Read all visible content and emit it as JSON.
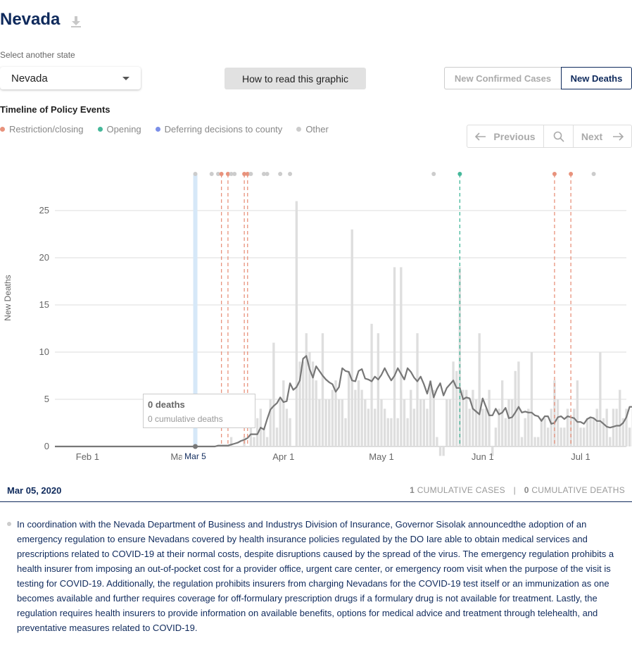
{
  "page": {
    "state_title": "Nevada",
    "select_label": "Select another state",
    "selected_state": "Nevada",
    "how_to_label": "How to read this graphic",
    "toggle": {
      "cases_label": "New Confirmed Cases",
      "deaths_label": "New Deaths",
      "active": "deaths"
    },
    "timeline_title": "Timeline of Policy Events",
    "legend": [
      {
        "label": "Restriction/closing",
        "color": "#e8927c"
      },
      {
        "label": "Opening",
        "color": "#45b89a"
      },
      {
        "label": "Deferring decisions to county",
        "color": "#7b8fe8"
      },
      {
        "label": "Other",
        "color": "#cccccc"
      }
    ],
    "nav": {
      "prev_label": "Previous",
      "next_label": "Next"
    },
    "tooltip": {
      "main": "0 deaths",
      "sub": "0 cumulative deaths"
    },
    "current_date": "Mar 05, 2020",
    "cumulative": {
      "cases_num": "1",
      "cases_label": "CUMULATIVE CASES",
      "separator": "|",
      "deaths_num": "0",
      "deaths_label": "CUMULATIVE DEATHS"
    },
    "description": "In coordination with the Nevada Department of Business and Industrys Division of Insurance, Governor Sisolak announcedthe adoption of an emergency regulation to ensure Nevadans covered by health insurance policies regulated by the DO Iare able to obtain medical services and prescriptions related to COVID-19 at their normal costs, despite disruptions caused by the spread of the virus. The emergency regulation prohibits a health insurer from imposing an out-of-pocket cost for a provider office, urgent care center, or emergency room visit when the purpose of the visit is testing for COVID-19. Additionally, the regulation prohibits insurers from charging Nevadans for the COVID-19 test itself or an immunization as one becomes available and further requires coverage for off-formulary prescription drugs if a formulary drug is not available for treatment. Lastly, the regulation requires health insurers to provide information on available benefits, options for medical advice and treatment through telehealth, and preventative measures related to COVID-19."
  },
  "chart_data": {
    "type": "bar",
    "ylabel": "New Deaths",
    "ylim": [
      0,
      28
    ],
    "yticks": [
      0,
      5,
      10,
      15,
      20,
      25
    ],
    "x_start": "2020-01-22",
    "x_end": "2020-07-15",
    "xtick_labels": [
      {
        "date": "2020-02-01",
        "label": "Feb 1"
      },
      {
        "date": "2020-03-01",
        "label": "Mar 1"
      },
      {
        "date": "2020-04-01",
        "label": "Apr 1"
      },
      {
        "date": "2020-05-01",
        "label": "May 1"
      },
      {
        "date": "2020-06-01",
        "label": "Jun 1"
      },
      {
        "date": "2020-07-01",
        "label": "Jul 1"
      }
    ],
    "selected_date": "2020-03-05",
    "selected_label": "Mar 5",
    "series": [
      {
        "name": "New Deaths",
        "start_date": "2020-03-15",
        "values": [
          0,
          1,
          0,
          0,
          0,
          1,
          0,
          2,
          1,
          3,
          4,
          2,
          1,
          5,
          11,
          2,
          5,
          7,
          4,
          3,
          0,
          26,
          9,
          9,
          12,
          10,
          9,
          7,
          5,
          12,
          5,
          5,
          6,
          7,
          5,
          5,
          3,
          8,
          23,
          6,
          7,
          6,
          5,
          4,
          13,
          4,
          12,
          5,
          4,
          3,
          3,
          19,
          3,
          19,
          5,
          3,
          6,
          4,
          12,
          5,
          5,
          4,
          7,
          6,
          1,
          -1,
          -1,
          5,
          5,
          9,
          8,
          19,
          6,
          6,
          4,
          6,
          5,
          12,
          4,
          4,
          6,
          -1,
          2,
          4,
          7,
          3,
          5,
          5,
          8,
          9,
          1,
          3,
          4,
          10,
          1,
          1,
          3,
          3,
          2,
          4,
          7,
          5,
          2,
          2,
          4,
          3,
          4,
          7,
          2,
          2,
          3,
          3,
          3,
          4,
          10,
          3,
          4,
          1,
          4,
          4,
          6,
          3,
          4,
          2,
          4,
          8,
          1,
          4,
          5,
          4,
          3,
          14,
          3,
          3,
          2,
          5,
          3,
          6,
          6,
          11,
          5,
          5,
          18
        ]
      },
      {
        "name": "7-day average",
        "start_date": "2020-03-11",
        "values": [
          0,
          0.1,
          0.1,
          0.1,
          0.1,
          0.2,
          0.3,
          0.4,
          0.6,
          0.7,
          0.9,
          1.3,
          1.3,
          1.3,
          2.0,
          1.8,
          2.9,
          3.9,
          4.3,
          4.6,
          5.2,
          4.7,
          4.8,
          6.7,
          6.0,
          6.3,
          7.0,
          9.3,
          9.6,
          8.2,
          7.3,
          8.5,
          8.0,
          7.5,
          7.1,
          6.8,
          6.6,
          5.8,
          6.3,
          8.3,
          8.0,
          7.9,
          7.0,
          6.9,
          8.0,
          8.2,
          7.2,
          7.1,
          6.9,
          7.4,
          7.1,
          7.6,
          8.3,
          7.6,
          7.0,
          7.5,
          8.3,
          7.7,
          7.1,
          8.3,
          7.9,
          7.3,
          6.9,
          7.4,
          6.6,
          5.6,
          6.9,
          5.2,
          6.1,
          6.7,
          5.4,
          6.2,
          6.6,
          7.0,
          6.2,
          6.2,
          5.0,
          5.2,
          5.1,
          4.0,
          3.7,
          3.4,
          5.1,
          4.2,
          3.3,
          3.3,
          4.0,
          3.4,
          3.6,
          4.1,
          3.0,
          3.1,
          3.6,
          4.2,
          3.6,
          3.7,
          3.6,
          3.6,
          3.3,
          3.2,
          2.7,
          3.2,
          3.2,
          2.4,
          2.5,
          3.1,
          3.2,
          2.9,
          3.2,
          3.1,
          3.0,
          2.6,
          2.6,
          2.4,
          2.9,
          3.1,
          3.0,
          2.7,
          2.7,
          2.4,
          2.1,
          2.0,
          2.1,
          2.2,
          2.2,
          2.5,
          3.1,
          4.2,
          4.2,
          4.2,
          4.2,
          4.8,
          4.6,
          5.9,
          5.9,
          6.0,
          6.5
        ]
      }
    ],
    "events": [
      {
        "date": "2020-03-05",
        "type": "Other"
      },
      {
        "date": "2020-03-10",
        "type": "Other"
      },
      {
        "date": "2020-03-12",
        "type": "Other"
      },
      {
        "date": "2020-03-13",
        "type": "Restriction/closing"
      },
      {
        "date": "2020-03-15",
        "type": "Restriction/closing"
      },
      {
        "date": "2020-03-16",
        "type": "Other"
      },
      {
        "date": "2020-03-17",
        "type": "Other"
      },
      {
        "date": "2020-03-20",
        "type": "Restriction/closing"
      },
      {
        "date": "2020-03-21",
        "type": "Restriction/closing"
      },
      {
        "date": "2020-03-22",
        "type": "Other"
      },
      {
        "date": "2020-03-26",
        "type": "Other"
      },
      {
        "date": "2020-03-27",
        "type": "Other"
      },
      {
        "date": "2020-03-31",
        "type": "Other"
      },
      {
        "date": "2020-04-03",
        "type": "Other"
      },
      {
        "date": "2020-05-17",
        "type": "Other"
      },
      {
        "date": "2020-05-25",
        "type": "Opening"
      },
      {
        "date": "2020-06-23",
        "type": "Restriction/closing"
      },
      {
        "date": "2020-06-28",
        "type": "Restriction/closing"
      },
      {
        "date": "2020-07-05",
        "type": "Other"
      }
    ],
    "grid": true,
    "legend_position": "top-left"
  }
}
